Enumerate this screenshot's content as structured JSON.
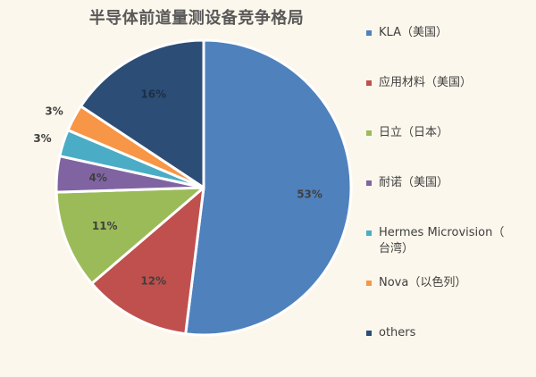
{
  "chart_data": {
    "type": "pie",
    "title": "半导体前道量测设备竞争格局",
    "legend_position": "right",
    "slices": [
      {
        "name": "KLA（美国）",
        "value": 53,
        "label": "53%",
        "color": "#4f81bd"
      },
      {
        "name": "应用材料（美国）",
        "value": 12,
        "label": "12%",
        "color": "#c0504d"
      },
      {
        "name": "日立（日本）",
        "value": 11,
        "label": "11%",
        "color": "#9bbb59"
      },
      {
        "name": "耐诺（美国）",
        "value": 4,
        "label": "4%",
        "color": "#8064a2"
      },
      {
        "name": "Hermes Microvision（台湾）",
        "value": 3,
        "label": "3%",
        "color": "#4bacc6"
      },
      {
        "name": "Nova（以色列）",
        "value": 3,
        "label": "3%",
        "color": "#f79646"
      },
      {
        "name": "others",
        "value": 16,
        "label": "16%",
        "color": "#2c4d75"
      }
    ]
  },
  "legend": [
    {
      "text": "KLA（美国）"
    },
    {
      "text": "应用材料（美国）"
    },
    {
      "text": "日立（日本）"
    },
    {
      "text": "耐诺（美国）"
    },
    {
      "text": "Hermes Microvision（",
      "text2": "台湾）"
    },
    {
      "text": "Nova（以色列）"
    },
    {
      "text": "others"
    }
  ]
}
